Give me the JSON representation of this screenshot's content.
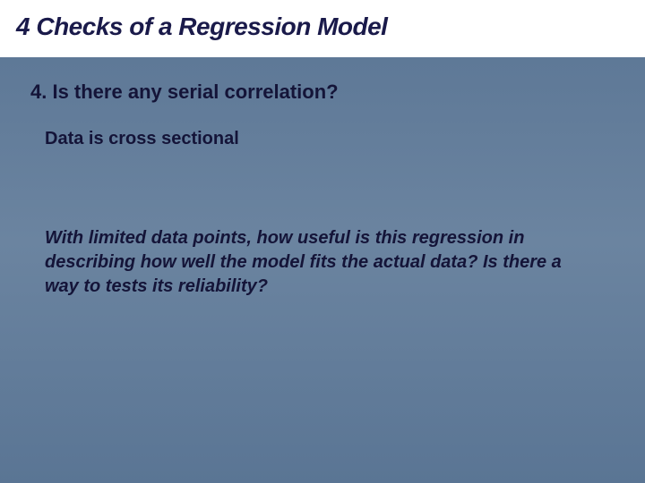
{
  "slide": {
    "title": "4 Checks of a Regression Model",
    "subheading": "4.  Is there any serial correlation?",
    "body1": "Data is cross sectional",
    "body2": "With limited data points, how useful is this regression in describing how well the model fits the actual data? Is there a way to tests its reliability?"
  },
  "style": {
    "background_gradient_top": "#5a7594",
    "background_gradient_mid": "#6b84a0",
    "title_bar_bg": "#ffffff",
    "title_color": "#1a1a4a",
    "text_color": "#141438",
    "title_fontsize": 28,
    "subheading_fontsize": 22,
    "body_fontsize": 20,
    "title_style": "bold italic",
    "subheading_style": "bold",
    "body1_style": "bold",
    "body2_style": "bold italic",
    "font_family": "Verdana",
    "slide_width": 720,
    "slide_height": 540
  }
}
